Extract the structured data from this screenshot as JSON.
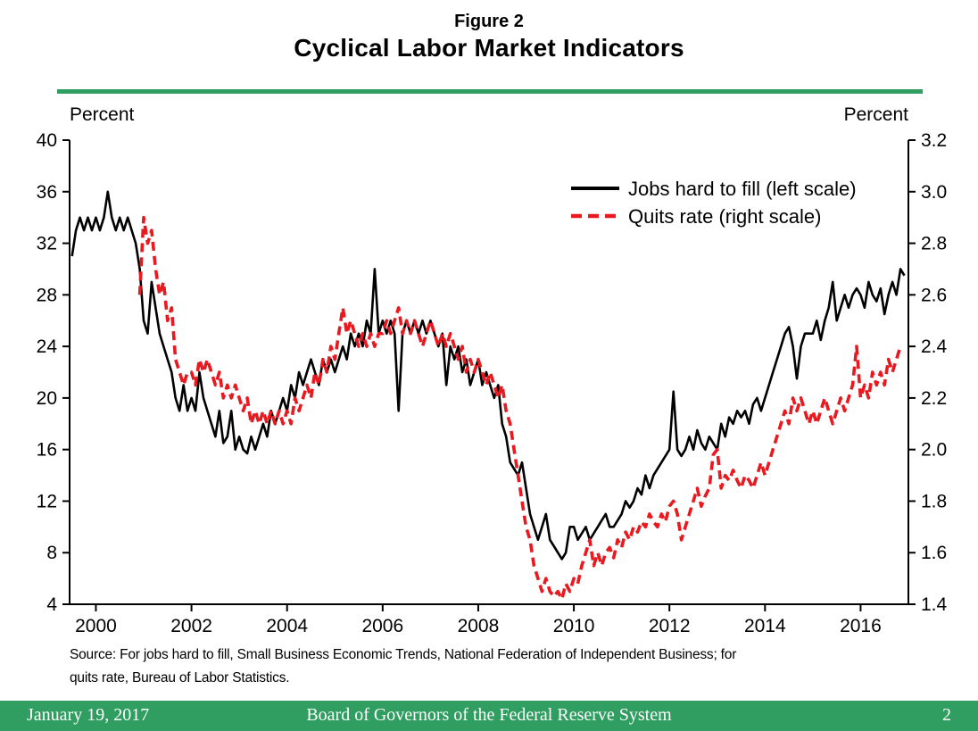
{
  "header": {
    "figure_label": "Figure 2",
    "title": "Cyclical Labor Market Indicators"
  },
  "axis_labels": {
    "left": "Percent",
    "right": "Percent"
  },
  "source": {
    "line1": "Source: For jobs hard to fill, Small Business Economic Trends, National Federation of Independent Business; for",
    "line2": "quits rate, Bureau of Labor Statistics."
  },
  "footer": {
    "date": "January 19, 2017",
    "title": "Board of Governors of the Federal Reserve System",
    "page_number": "2"
  },
  "colors": {
    "green": "#2f9e60",
    "black_series": "#000000",
    "red_series": "#e8191f"
  },
  "chart_data": {
    "type": "line",
    "title": "Cyclical Labor Market Indicators",
    "grid": false,
    "legend_position": "top-right",
    "x_axis": {
      "min": 1999.45,
      "max": 2017.0,
      "ticks": [
        2000,
        2002,
        2004,
        2006,
        2008,
        2010,
        2012,
        2014,
        2016
      ]
    },
    "left_axis": {
      "label": "Percent",
      "min": 4,
      "max": 40,
      "tick_step": 4,
      "ticks": [
        40,
        36,
        32,
        28,
        24,
        20,
        16,
        12,
        8,
        4
      ]
    },
    "right_axis": {
      "label": "Percent",
      "min": 1.4,
      "max": 3.2,
      "tick_step": 0.2,
      "ticks": [
        3.2,
        3.0,
        2.8,
        2.6,
        2.4,
        2.2,
        2.0,
        1.8,
        1.6,
        1.4
      ]
    },
    "series": [
      {
        "name": "Jobs hard to fill (left scale)",
        "axis": "left",
        "style": "solid",
        "color": "#000000",
        "frequency": "monthly",
        "start_year": 1999,
        "start_month": 7,
        "values": [
          31,
          33,
          34,
          33,
          34,
          33,
          34,
          33,
          34,
          36,
          34,
          33,
          34,
          33,
          34,
          33,
          32,
          30,
          26,
          25,
          29,
          27,
          25,
          24,
          23,
          22,
          20,
          19,
          21,
          19,
          20,
          19,
          22,
          20,
          19,
          18,
          17,
          19,
          16.5,
          17,
          19,
          16,
          17,
          16,
          15.7,
          17,
          16,
          17,
          18,
          17,
          19,
          18,
          19,
          20,
          19,
          21,
          20,
          22,
          21,
          22,
          23,
          22,
          21,
          23,
          22,
          23,
          22,
          23,
          24,
          23,
          25,
          24,
          25,
          24,
          26,
          25,
          30,
          25,
          26,
          25,
          26,
          25,
          19,
          25,
          26,
          25,
          26,
          25,
          26,
          25,
          26,
          25,
          24,
          25,
          21,
          24,
          23,
          24,
          22,
          23,
          21,
          22,
          23,
          21,
          22,
          21,
          20,
          21,
          18,
          17,
          15,
          14.5,
          14,
          15,
          13,
          11,
          10,
          9,
          10,
          11,
          9,
          8.5,
          8,
          7.5,
          8,
          10,
          10,
          9,
          9.5,
          10,
          9,
          9.5,
          10,
          10.5,
          11,
          10,
          10,
          10.5,
          11,
          12,
          11.5,
          12,
          13,
          12.5,
          14,
          13,
          14,
          14.5,
          15,
          15.5,
          16,
          20.5,
          16,
          15.5,
          16,
          17,
          16,
          17.5,
          16.5,
          16,
          17,
          16.5,
          16,
          18,
          17,
          18.5,
          18,
          19,
          18.5,
          19,
          18,
          19.5,
          20,
          19,
          20,
          21,
          22,
          23,
          24,
          25,
          25.5,
          24,
          21.5,
          24,
          25,
          25,
          25,
          26,
          24.5,
          26,
          27,
          29,
          26,
          27,
          28,
          27,
          28,
          28.5,
          28,
          27,
          29,
          28,
          27.5,
          28.5,
          26.5,
          28,
          29,
          28,
          30,
          29.5
        ]
      },
      {
        "name": "Quits rate (right scale)",
        "axis": "right",
        "style": "dashed",
        "color": "#e8191f",
        "frequency": "monthly",
        "start_year": 2000,
        "start_month": 12,
        "values": [
          2.6,
          2.9,
          2.8,
          2.85,
          2.7,
          2.6,
          2.65,
          2.5,
          2.55,
          2.35,
          2.3,
          2.25,
          2.3,
          2.3,
          2.25,
          2.35,
          2.3,
          2.35,
          2.3,
          2.25,
          2.3,
          2.2,
          2.25,
          2.2,
          2.25,
          2.2,
          2.15,
          2.2,
          2.1,
          2.15,
          2.1,
          2.15,
          2.1,
          2.15,
          2.1,
          2.15,
          2.1,
          2.15,
          2.1,
          2.2,
          2.15,
          2.2,
          2.25,
          2.2,
          2.3,
          2.25,
          2.35,
          2.3,
          2.4,
          2.35,
          2.45,
          2.55,
          2.45,
          2.5,
          2.45,
          2.4,
          2.45,
          2.4,
          2.45,
          2.4,
          2.45,
          2.45,
          2.5,
          2.45,
          2.5,
          2.55,
          2.45,
          2.5,
          2.45,
          2.5,
          2.45,
          2.4,
          2.45,
          2.5,
          2.45,
          2.4,
          2.45,
          2.4,
          2.45,
          2.4,
          2.35,
          2.4,
          2.3,
          2.35,
          2.3,
          2.35,
          2.3,
          2.25,
          2.3,
          2.25,
          2.2,
          2.25,
          2.15,
          2.1,
          2.0,
          1.9,
          1.8,
          1.7,
          1.65,
          1.55,
          1.5,
          1.45,
          1.5,
          1.45,
          1.43,
          1.45,
          1.42,
          1.48,
          1.45,
          1.5,
          1.48,
          1.55,
          1.6,
          1.65,
          1.55,
          1.6,
          1.55,
          1.6,
          1.62,
          1.58,
          1.65,
          1.62,
          1.68,
          1.65,
          1.7,
          1.68,
          1.72,
          1.7,
          1.75,
          1.72,
          1.7,
          1.75,
          1.72,
          1.78,
          1.8,
          1.75,
          1.65,
          1.7,
          1.75,
          1.8,
          1.85,
          1.78,
          1.82,
          1.85,
          1.98,
          2.0,
          1.85,
          1.9,
          1.88,
          1.92,
          1.88,
          1.85,
          1.9,
          1.88,
          1.85,
          1.9,
          1.95,
          1.9,
          1.95,
          2.0,
          2.05,
          2.1,
          2.15,
          2.1,
          2.2,
          2.15,
          2.2,
          2.15,
          2.1,
          2.15,
          2.1,
          2.15,
          2.2,
          2.15,
          2.1,
          2.15,
          2.2,
          2.15,
          2.2,
          2.25,
          2.4,
          2.2,
          2.25,
          2.2,
          2.3,
          2.25,
          2.3,
          2.25,
          2.35,
          2.3,
          2.35,
          2.4
        ]
      }
    ]
  }
}
